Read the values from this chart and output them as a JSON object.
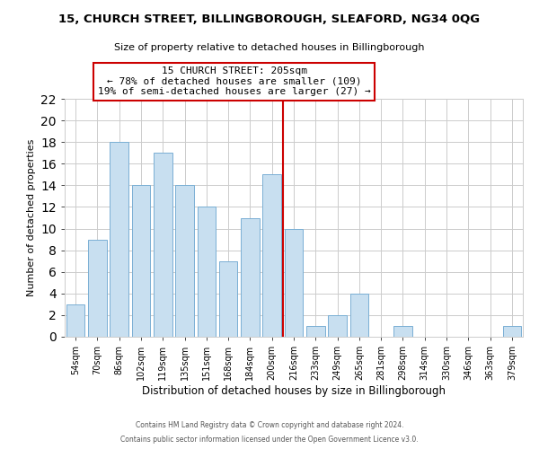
{
  "title": "15, CHURCH STREET, BILLINGBOROUGH, SLEAFORD, NG34 0QG",
  "subtitle": "Size of property relative to detached houses in Billingborough",
  "xlabel": "Distribution of detached houses by size in Billingborough",
  "ylabel": "Number of detached properties",
  "bar_labels": [
    "54sqm",
    "70sqm",
    "86sqm",
    "102sqm",
    "119sqm",
    "135sqm",
    "151sqm",
    "168sqm",
    "184sqm",
    "200sqm",
    "216sqm",
    "233sqm",
    "249sqm",
    "265sqm",
    "281sqm",
    "298sqm",
    "314sqm",
    "330sqm",
    "346sqm",
    "363sqm",
    "379sqm"
  ],
  "bar_values": [
    3,
    9,
    18,
    14,
    17,
    14,
    12,
    7,
    11,
    15,
    10,
    1,
    2,
    4,
    0,
    1,
    0,
    0,
    0,
    0,
    1
  ],
  "bar_color": "#c8dff0",
  "bar_edge_color": "#7aafd4",
  "vline_x": 9.5,
  "vline_color": "#cc0000",
  "annotation_title": "15 CHURCH STREET: 205sqm",
  "annotation_line1": "← 78% of detached houses are smaller (109)",
  "annotation_line2": "19% of semi-detached houses are larger (27) →",
  "annotation_box_color": "#ffffff",
  "annotation_box_edge": "#cc0000",
  "ylim": [
    0,
    22
  ],
  "yticks": [
    0,
    2,
    4,
    6,
    8,
    10,
    12,
    14,
    16,
    18,
    20,
    22
  ],
  "footer1": "Contains HM Land Registry data © Crown copyright and database right 2024.",
  "footer2": "Contains public sector information licensed under the Open Government Licence v3.0.",
  "grid_color": "#cccccc",
  "background_color": "#ffffff"
}
